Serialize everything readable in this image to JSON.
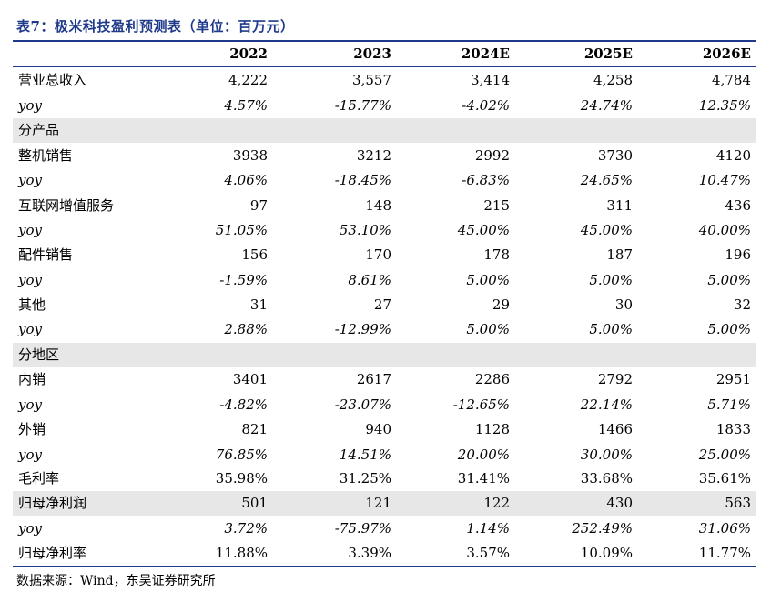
{
  "title": "表7：极米科技盈利预测表（单位：百万元）",
  "header": [
    "",
    "2022",
    "2023",
    "2024E",
    "2025E",
    "2026E"
  ],
  "rows": [
    {
      "label": "营业总收入",
      "values": [
        "4,222",
        "3,557",
        "3,414",
        "4,258",
        "4,784"
      ],
      "italic": false,
      "shaded": false
    },
    {
      "label": "yoy",
      "values": [
        "4.57%",
        "-15.77%",
        "-4.02%",
        "24.74%",
        "12.35%"
      ],
      "italic": true,
      "shaded": false
    },
    {
      "label": "分产品",
      "values": [
        "",
        "",
        "",
        "",
        ""
      ],
      "italic": false,
      "shaded": true
    },
    {
      "label": "整机销售",
      "values": [
        "3938",
        "3212",
        "2992",
        "3730",
        "4120"
      ],
      "italic": false,
      "shaded": false
    },
    {
      "label": "yoy",
      "values": [
        "4.06%",
        "-18.45%",
        "-6.83%",
        "24.65%",
        "10.47%"
      ],
      "italic": true,
      "shaded": false
    },
    {
      "label": "互联网增值服务",
      "values": [
        "97",
        "148",
        "215",
        "311",
        "436"
      ],
      "italic": false,
      "shaded": false
    },
    {
      "label": "yoy",
      "values": [
        "51.05%",
        "53.10%",
        "45.00%",
        "45.00%",
        "40.00%"
      ],
      "italic": true,
      "shaded": false
    },
    {
      "label": "配件销售",
      "values": [
        "156",
        "170",
        "178",
        "187",
        "196"
      ],
      "italic": false,
      "shaded": false
    },
    {
      "label": "yoy",
      "values": [
        "-1.59%",
        "8.61%",
        "5.00%",
        "5.00%",
        "5.00%"
      ],
      "italic": true,
      "shaded": false
    },
    {
      "label": "其他",
      "values": [
        "31",
        "27",
        "29",
        "30",
        "32"
      ],
      "italic": false,
      "shaded": false
    },
    {
      "label": "yoy",
      "values": [
        "2.88%",
        "-12.99%",
        "5.00%",
        "5.00%",
        "5.00%"
      ],
      "italic": true,
      "shaded": false
    },
    {
      "label": "分地区",
      "values": [
        "",
        "",
        "",
        "",
        ""
      ],
      "italic": false,
      "shaded": true
    },
    {
      "label": "内销",
      "values": [
        "3401",
        "2617",
        "2286",
        "2792",
        "2951"
      ],
      "italic": false,
      "shaded": false
    },
    {
      "label": "yoy",
      "values": [
        "-4.82%",
        "-23.07%",
        "-12.65%",
        "22.14%",
        "5.71%"
      ],
      "italic": true,
      "shaded": false
    },
    {
      "label": "外销",
      "values": [
        "821",
        "940",
        "1128",
        "1466",
        "1833"
      ],
      "italic": false,
      "shaded": false
    },
    {
      "label": "yoy",
      "values": [
        "76.85%",
        "14.51%",
        "20.00%",
        "30.00%",
        "25.00%"
      ],
      "italic": true,
      "shaded": false
    },
    {
      "label": "毛利率",
      "values": [
        "35.98%",
        "31.25%",
        "31.41%",
        "33.68%",
        "35.61%"
      ],
      "italic": false,
      "shaded": false
    },
    {
      "label": "归母净利润",
      "values": [
        "501",
        "121",
        "122",
        "430",
        "563"
      ],
      "italic": false,
      "shaded": true
    },
    {
      "label": "yoy",
      "values": [
        "3.72%",
        "-75.97%",
        "1.14%",
        "252.49%",
        "31.06%"
      ],
      "italic": true,
      "shaded": false
    },
    {
      "label": "归母净利率",
      "values": [
        "11.88%",
        "3.39%",
        "3.57%",
        "10.09%",
        "11.77%"
      ],
      "italic": false,
      "shaded": false
    }
  ],
  "source": "数据来源：Wind，东吴证券研究所"
}
